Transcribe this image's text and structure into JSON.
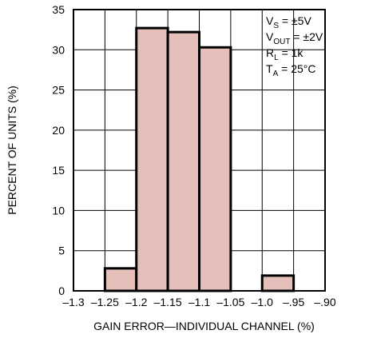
{
  "chart_data": {
    "type": "bar",
    "title": "",
    "xlabel": "GAIN ERROR—INDIVIDUAL CHANNEL (%)",
    "ylabel": "PERCENT OF UNITS (%)",
    "xlim": [
      -1.3,
      -0.9
    ],
    "ylim": [
      0,
      35
    ],
    "grid": true,
    "bin_width": 0.05,
    "x_ticks": [
      -1.3,
      -1.25,
      -1.2,
      -1.15,
      -1.1,
      -1.05,
      -1.0,
      -0.95,
      -0.9
    ],
    "x_tick_labels": [
      "–1.3",
      "–1.25",
      "–1.2",
      "–1.15",
      "–1.1",
      "–1.05",
      "–1.0",
      "–.95",
      "–.90"
    ],
    "y_ticks": [
      0,
      5,
      10,
      15,
      20,
      25,
      30,
      35
    ],
    "y_tick_labels": [
      "0",
      "5",
      "10",
      "15",
      "20",
      "25",
      "30",
      "35"
    ],
    "bins": [
      {
        "start": -1.25,
        "end": -1.2,
        "value": 2.8
      },
      {
        "start": -1.2,
        "end": -1.15,
        "value": 32.7
      },
      {
        "start": -1.15,
        "end": -1.1,
        "value": 32.2
      },
      {
        "start": -1.1,
        "end": -1.05,
        "value": 30.3
      },
      {
        "start": -1.0,
        "end": -0.95,
        "value": 1.9
      }
    ],
    "bar_color": "#e5c0bb",
    "edge_color": "#000000",
    "annotations": [
      {
        "main": "V",
        "sub": "S",
        "rest": " = ±5V"
      },
      {
        "main": "V",
        "sub": "OUT",
        "rest": " = ±2V"
      },
      {
        "main": "R",
        "sub": "L",
        "rest": " = 1k"
      },
      {
        "main": "T",
        "sub": "A",
        "rest": " = 25°C"
      }
    ]
  }
}
